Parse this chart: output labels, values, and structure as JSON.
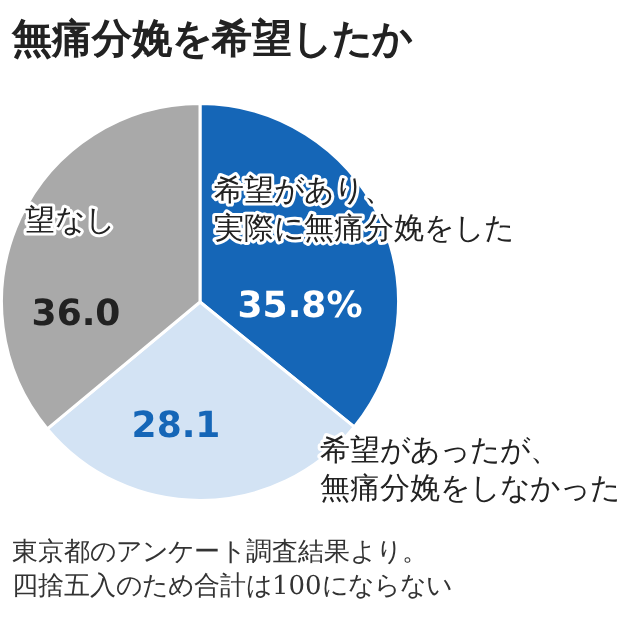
{
  "chart_data": {
    "type": "pie",
    "title": "無痛分娩を希望したか",
    "categories": [
      "希望があり、実際に無痛分娩をした",
      "希望があったが、無痛分娩をしなかった",
      "望なし"
    ],
    "values": [
      35.8,
      28.1,
      36.0
    ],
    "colors": [
      "#1566b7",
      "#d3e3f4",
      "#a9a9a9"
    ],
    "value_labels": [
      "35.8%",
      "28.1",
      "36.0"
    ],
    "annotations": [
      "東京都のアンケート調査結果より。",
      "四捨五入のため合計は100にならない"
    ]
  }
}
